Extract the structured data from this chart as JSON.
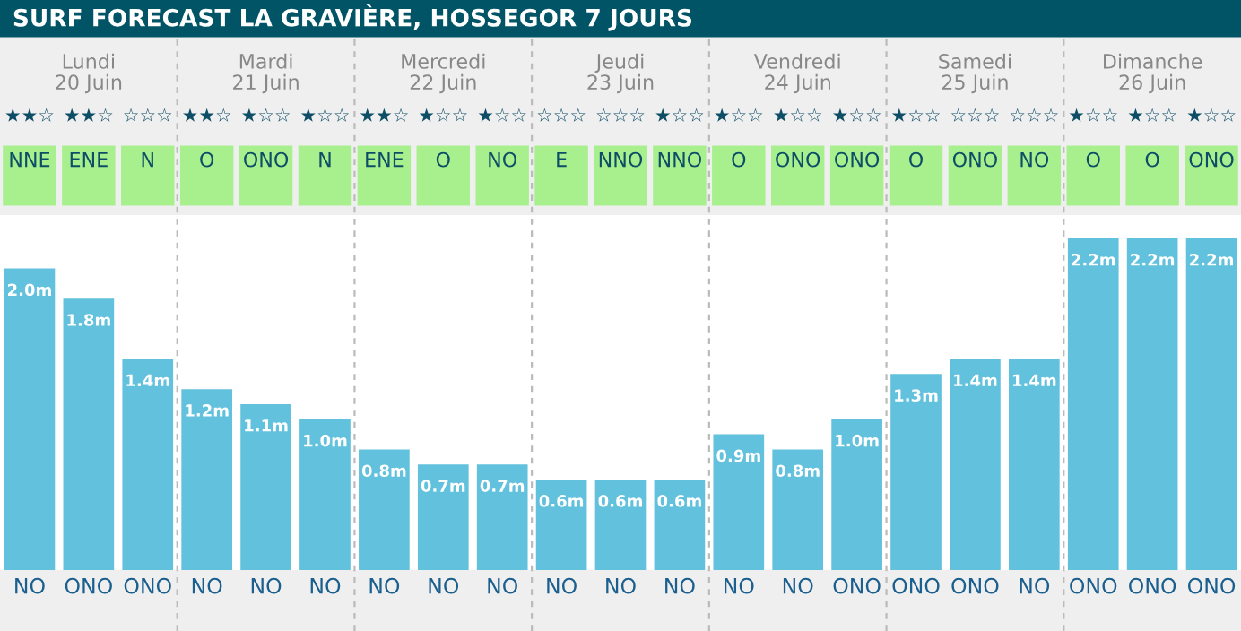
{
  "chart_data": {
    "type": "bar",
    "title": "SURF FORECAST LA GRAVIÈRE, HOSSEGOR 7 JOURS",
    "categories": [
      "NO",
      "ONO",
      "ONO",
      "NO",
      "NO",
      "NO",
      "NO",
      "NO",
      "NO",
      "NO",
      "NO",
      "NO",
      "NO",
      "NO",
      "ONO",
      "ONO",
      "ONO",
      "NO",
      "ONO",
      "ONO",
      "ONO"
    ],
    "values": [
      2.0,
      1.8,
      1.4,
      1.2,
      1.1,
      1.0,
      0.8,
      0.7,
      0.7,
      0.6,
      0.6,
      0.6,
      0.9,
      0.8,
      1.0,
      1.3,
      1.4,
      1.4,
      2.2,
      2.2,
      2.2
    ],
    "value_labels": [
      "2.0m",
      "1.8m",
      "1.4m",
      "1.2m",
      "1.1m",
      "1.0m",
      "0.8m",
      "0.7m",
      "0.7m",
      "0.6m",
      "0.6m",
      "0.6m",
      "0.9m",
      "0.8m",
      "1.0m",
      "1.3m",
      "1.4m",
      "1.4m",
      "2.2m",
      "2.2m",
      "2.2m"
    ],
    "color": "#62c1dd",
    "annotations": [
      "Lundi\n20 Juin",
      "Mardi\n21 Juin",
      "Mercredi\n22 Juin",
      "Jeudi\n23 Juin",
      "Vendredi\n24 Juin",
      "Samedi\n25 Juin",
      "Dimanche\n26 Juin",
      "★★☆",
      "★★☆",
      "☆☆☆",
      "★★☆",
      "★☆☆",
      "★☆☆",
      "★★☆",
      "★☆☆",
      "★☆☆",
      "☆☆☆",
      "☆☆☆",
      "★☆☆",
      "★☆☆",
      "★☆☆",
      "★☆☆",
      "★☆☆",
      "☆☆☆",
      "☆☆☆",
      "★☆☆",
      "★☆☆",
      "★☆☆",
      "NNE",
      "ENE",
      "N",
      "O",
      "ONO",
      "N",
      "ENE",
      "O",
      "NO",
      "E",
      "NNO",
      "NNO",
      "O",
      "ONO",
      "ONO",
      "O",
      "ONO",
      "NO",
      "O",
      "O",
      "ONO"
    ]
  }
}
